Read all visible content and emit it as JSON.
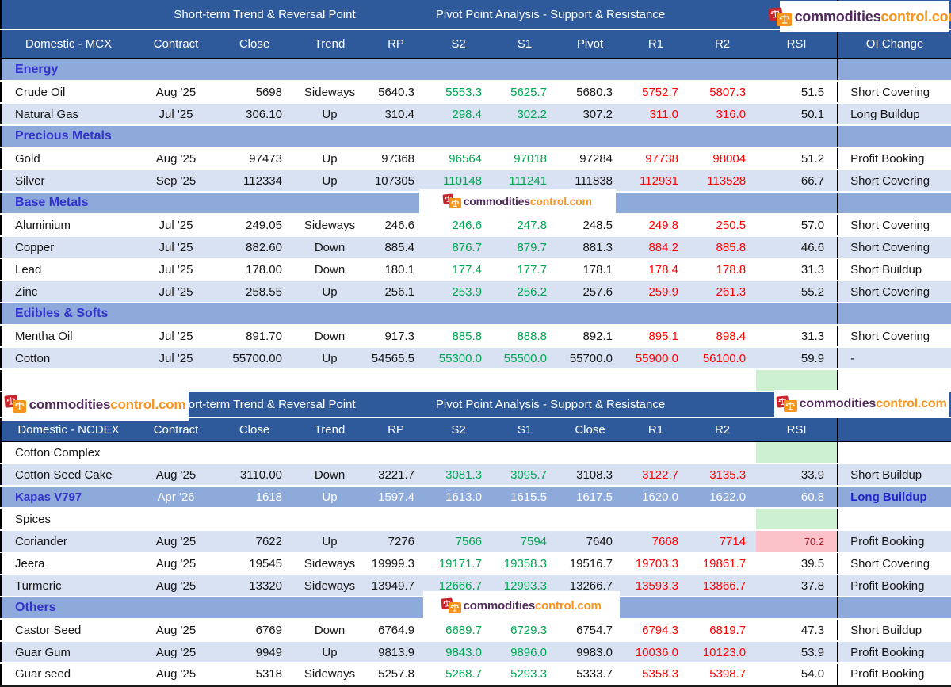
{
  "brand": {
    "logo_dark": "commodities",
    "logo_orange": "control.com"
  },
  "colors": {
    "header_bg": "#2E5A9C",
    "section_bg": "#8EAADB",
    "row_alt_bg": "#D9E2F3",
    "support_green": "#00A551",
    "resistance_red": "#FF0000",
    "section_text": "#3333CC",
    "rsi_good_bg": "#CDEFD2",
    "rsi_alert_bg": "#FBC2C9",
    "rsi_alert_text": "#A11A22",
    "highlight_bg": "#8EAADB",
    "logo_dark": "#502B5A",
    "logo_orange": "#F7941D"
  },
  "chart_data": {
    "type": "table",
    "tables": [
      {
        "name": "mcx",
        "banner": {
          "left": "Short-term Trend & Reversal Point",
          "right": "Pivot Point Analysis - Support & Resistance"
        },
        "headers": [
          "Domestic - MCX",
          "Contract",
          "Close",
          "Trend",
          "RP",
          "S2",
          "S1",
          "Pivot",
          "R1",
          "R2",
          "RSI",
          "OI Change"
        ],
        "rows": [
          {
            "type": "section",
            "style": "blue",
            "label": "Energy"
          },
          {
            "type": "data",
            "shade": "w",
            "name": "Crude Oil",
            "contract": "Aug '25",
            "close": "5698",
            "trend": "Sideways",
            "rp": "5640.3",
            "s2": "5553.3",
            "s1": "5625.7",
            "pivot": "5680.3",
            "r1": "5752.7",
            "r2": "5807.3",
            "rsi": "51.5",
            "oi": "Short Covering"
          },
          {
            "type": "data",
            "shade": "a",
            "name": "Natural Gas",
            "contract": "Jul '25",
            "close": "306.10",
            "trend": "Up",
            "rp": "310.4",
            "s2": "298.4",
            "s1": "302.2",
            "pivot": "307.2",
            "r1": "311.0",
            "r2": "316.0",
            "rsi": "50.1",
            "oi": "Long Buildup"
          },
          {
            "type": "section",
            "style": "blue",
            "label": "Precious Metals"
          },
          {
            "type": "data",
            "shade": "w",
            "name": "Gold",
            "contract": "Aug '25",
            "close": "97473",
            "trend": "Up",
            "rp": "97368",
            "s2": "96564",
            "s1": "97018",
            "pivot": "97284",
            "r1": "97738",
            "r2": "98004",
            "rsi": "51.2",
            "oi": "Profit Booking"
          },
          {
            "type": "data",
            "shade": "a",
            "name": "Silver",
            "contract": "Sep '25",
            "close": "112334",
            "trend": "Up",
            "rp": "107305",
            "s2": "110148",
            "s1": "111241",
            "pivot": "111838",
            "r1": "112931",
            "r2": "113528",
            "rsi": "66.7",
            "oi": "Short Covering"
          },
          {
            "type": "section",
            "style": "blue",
            "label": "Base Metals"
          },
          {
            "type": "data",
            "shade": "w",
            "name": "Aluminium",
            "contract": "Jul '25",
            "close": "249.05",
            "trend": "Sideways",
            "rp": "246.6",
            "s2": "246.6",
            "s1": "247.8",
            "pivot": "248.5",
            "r1": "249.8",
            "r2": "250.5",
            "rsi": "57.0",
            "oi": "Short Covering"
          },
          {
            "type": "data",
            "shade": "a",
            "name": "Copper",
            "contract": "Jul '25",
            "close": "882.60",
            "trend": "Down",
            "rp": "885.4",
            "s2": "876.7",
            "s1": "879.7",
            "pivot": "881.3",
            "r1": "884.2",
            "r2": "885.8",
            "rsi": "46.6",
            "oi": "Short Covering"
          },
          {
            "type": "data",
            "shade": "w",
            "name": "Lead",
            "contract": "Jul '25",
            "close": "178.00",
            "trend": "Down",
            "rp": "180.1",
            "s2": "177.4",
            "s1": "177.7",
            "pivot": "178.1",
            "r1": "178.4",
            "r2": "178.8",
            "rsi": "31.3",
            "oi": "Short Buildup"
          },
          {
            "type": "data",
            "shade": "a",
            "name": "Zinc",
            "contract": "Jul '25",
            "close": "258.55",
            "trend": "Up",
            "rp": "256.1",
            "s2": "253.9",
            "s1": "256.2",
            "pivot": "257.6",
            "r1": "259.9",
            "r2": "261.3",
            "rsi": "55.2",
            "oi": "Short Covering"
          },
          {
            "type": "section",
            "style": "blue",
            "label": "Edibles & Softs"
          },
          {
            "type": "data",
            "shade": "w",
            "name": "Mentha Oil",
            "contract": "Jul '25",
            "close": "891.70",
            "trend": "Down",
            "rp": "917.3",
            "s2": "885.8",
            "s1": "888.8",
            "pivot": "892.1",
            "r1": "895.1",
            "r2": "898.4",
            "rsi": "31.3",
            "oi": "Short Covering"
          },
          {
            "type": "data",
            "shade": "a",
            "name": "Cotton",
            "contract": "Jul '25",
            "close": "55700.00",
            "trend": "Up",
            "rp": "54565.5",
            "s2": "55300.0",
            "s1": "55500.0",
            "pivot": "55700.0",
            "r1": "55900.0",
            "r2": "56100.0",
            "rsi": "59.9",
            "oi": "-"
          },
          {
            "type": "spacer"
          }
        ]
      },
      {
        "name": "ncdex",
        "banner": {
          "left": "Short-term Trend & Reversal Point",
          "right": "Pivot Point Analysis - Support & Resistance"
        },
        "headers": [
          "Domestic - NCDEX",
          "Contract",
          "Close",
          "Trend",
          "RP",
          "S2",
          "S1",
          "Close",
          "R1",
          "R2",
          "RSI",
          ""
        ],
        "rows": [
          {
            "type": "section",
            "style": "plain",
            "label": "Cotton Complex",
            "rsi": "green"
          },
          {
            "type": "data",
            "shade": "a",
            "name": "Cotton Seed Cake",
            "contract": "Aug '25",
            "close": "3110.00",
            "trend": "Down",
            "rp": "3221.7",
            "s2": "3081.3",
            "s1": "3095.7",
            "pivot": "3108.3",
            "r1": "3122.7",
            "r2": "3135.3",
            "rsi": "33.9",
            "oi": "Short Buildup"
          },
          {
            "type": "data",
            "shade": "hl",
            "name": "Kapas V797",
            "contract": "Apr '26",
            "close": "1618",
            "trend": "Up",
            "rp": "1597.4",
            "s2": "1613.0",
            "s1": "1615.5",
            "pivot": "1617.5",
            "r1": "1620.0",
            "r2": "1622.0",
            "rsi": "60.8",
            "oi": "Long Buildup"
          },
          {
            "type": "section",
            "style": "plain",
            "label": "Spices",
            "rsi": "green"
          },
          {
            "type": "data",
            "shade": "a",
            "name": "Coriander",
            "contract": "Aug '25",
            "close": "7622",
            "trend": "Up",
            "rp": "7276",
            "s2": "7566",
            "s1": "7594",
            "pivot": "7640",
            "r1": "7668",
            "r2": "7714",
            "rsi": "70.2",
            "rsi_bg": "pink",
            "oi": "Profit Booking"
          },
          {
            "type": "data",
            "shade": "w",
            "name": "Jeera",
            "contract": "Aug '25",
            "close": "19545",
            "trend": "Sideways",
            "rp": "19999.3",
            "s2": "19171.7",
            "s1": "19358.3",
            "pivot": "19516.7",
            "r1": "19703.3",
            "r2": "19861.7",
            "rsi": "39.5",
            "oi": "Short Covering"
          },
          {
            "type": "data",
            "shade": "a",
            "name": "Turmeric",
            "contract": "Aug '25",
            "close": "13320",
            "trend": "Sideways",
            "rp": "13949.7",
            "s2": "12666.7",
            "s1": "12993.3",
            "pivot": "13266.7",
            "r1": "13593.3",
            "r2": "13866.7",
            "rsi": "37.8",
            "oi": "Profit Booking"
          },
          {
            "type": "section",
            "style": "blue",
            "label": "Others"
          },
          {
            "type": "data",
            "shade": "w",
            "name": "Castor Seed",
            "contract": "Aug '25",
            "close": "6769",
            "trend": "Down",
            "rp": "6764.9",
            "s2": "6689.7",
            "s1": "6729.3",
            "pivot": "6754.7",
            "r1": "6794.3",
            "r2": "6819.7",
            "rsi": "47.3",
            "oi": "Short Buildup"
          },
          {
            "type": "data",
            "shade": "a",
            "name": "Guar Gum",
            "contract": "Aug '25",
            "close": "9949",
            "trend": "Up",
            "rp": "9813.9",
            "s2": "9843.0",
            "s1": "9896.0",
            "pivot": "9983.0",
            "r1": "10036.0",
            "r2": "10123.0",
            "rsi": "53.9",
            "oi": "Profit Booking"
          },
          {
            "type": "data",
            "shade": "w",
            "name": "Guar seed",
            "contract": "Aug '25",
            "close": "5318",
            "trend": "Sideways",
            "rp": "5257.8",
            "s2": "5268.7",
            "s1": "5293.3",
            "pivot": "5333.7",
            "r1": "5358.3",
            "r2": "5398.7",
            "rsi": "54.0",
            "oi": "Profit Booking"
          }
        ]
      }
    ]
  }
}
